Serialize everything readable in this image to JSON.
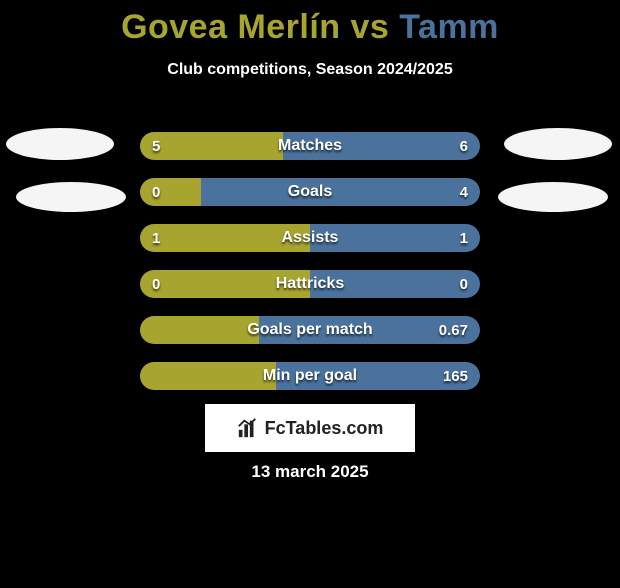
{
  "title": {
    "player1": "Govea Merlín",
    "vs": " vs ",
    "player2": "Tamm",
    "color1": "#a8a430",
    "color2": "#4a729c",
    "fontsize": 34
  },
  "subtitle": "Club competitions, Season 2024/2025",
  "colors": {
    "player1": "#a8a430",
    "player2": "#4a729c",
    "background": "#000000",
    "avatar": "#f5f5f5",
    "text": "#ffffff"
  },
  "bars": [
    {
      "label": "Matches",
      "left_val": "5",
      "right_val": "6",
      "left_pct": 42,
      "right_pct": 58
    },
    {
      "label": "Goals",
      "left_val": "0",
      "right_val": "4",
      "left_pct": 18,
      "right_pct": 82
    },
    {
      "label": "Assists",
      "left_val": "1",
      "right_val": "1",
      "left_pct": 50,
      "right_pct": 50
    },
    {
      "label": "Hattricks",
      "left_val": "0",
      "right_val": "0",
      "left_pct": 50,
      "right_pct": 50
    },
    {
      "label": "Goals per match",
      "left_val": "",
      "right_val": "0.67",
      "left_pct": 35,
      "right_pct": 65
    },
    {
      "label": "Min per goal",
      "left_val": "",
      "right_val": "165",
      "left_pct": 40,
      "right_pct": 60
    }
  ],
  "logo_text": "FcTables.com",
  "date": "13 march 2025"
}
